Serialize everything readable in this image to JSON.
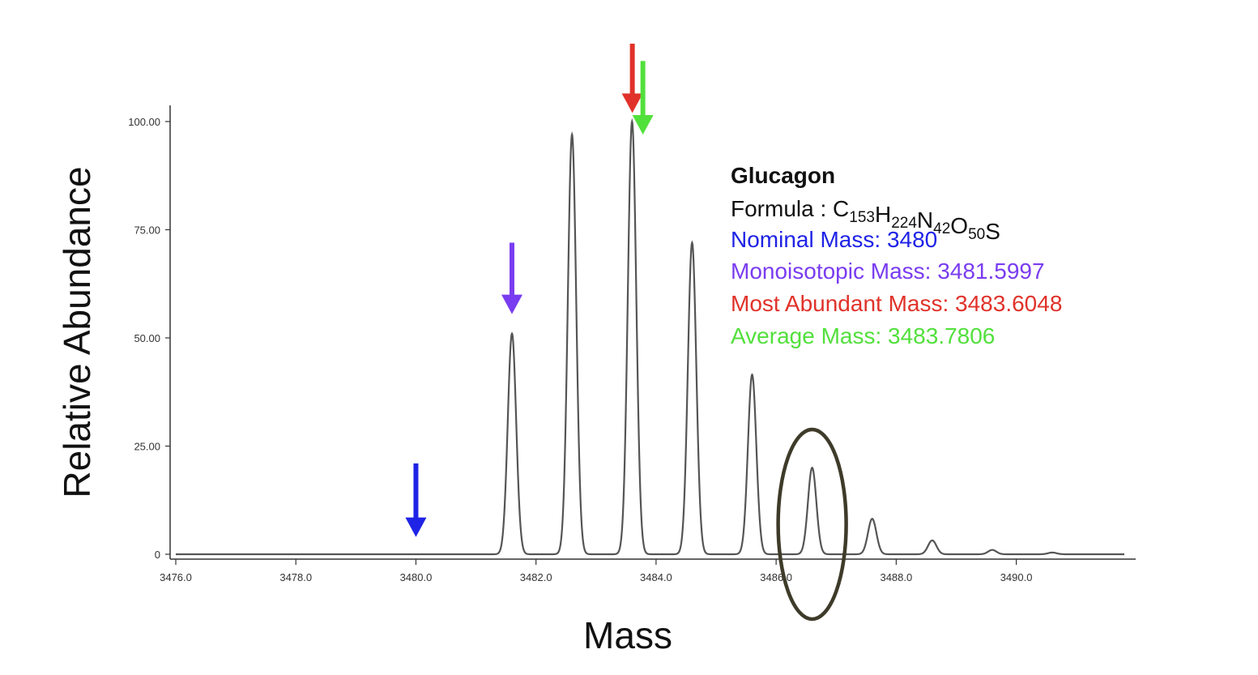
{
  "chart_data": {
    "type": "line",
    "xlabel": "Mass",
    "ylabel": "Relative Abundance",
    "xlim": [
      3476.0,
      3491.8
    ],
    "ylim": [
      0,
      100
    ],
    "x_ticks": [
      3476.0,
      3478.0,
      3480.0,
      3482.0,
      3484.0,
      3486.0,
      3488.0,
      3490.0
    ],
    "x_tick_labels": [
      "3476.0",
      "3478.0",
      "3480.0",
      "3482.0",
      "3484.0",
      "3486.0",
      "3488.0",
      "3490.0"
    ],
    "y_ticks": [
      0,
      25,
      50,
      75,
      100
    ],
    "y_tick_labels": [
      "0",
      "25.00",
      "50.00",
      "75.00",
      "100.00"
    ],
    "grid": false,
    "series": [
      {
        "color": "#555555",
        "peak_width": 0.07,
        "peaks": [
          {
            "x": 3481.6,
            "y": 51
          },
          {
            "x": 3482.6,
            "y": 97
          },
          {
            "x": 3483.6,
            "y": 100
          },
          {
            "x": 3484.6,
            "y": 72
          },
          {
            "x": 3485.6,
            "y": 41.5
          },
          {
            "x": 3486.6,
            "y": 20
          },
          {
            "x": 3487.6,
            "y": 8.2
          },
          {
            "x": 3488.6,
            "y": 3.2
          },
          {
            "x": 3489.6,
            "y": 1.0
          },
          {
            "x": 3490.6,
            "y": 0.4
          }
        ]
      }
    ],
    "annotations": {
      "title": "Glucagon",
      "formula": {
        "prefix": "Formula : ",
        "parts": [
          {
            "el": "C",
            "n": "153"
          },
          {
            "el": "H",
            "n": "224"
          },
          {
            "el": "N",
            "n": "42"
          },
          {
            "el": "O",
            "n": "50"
          },
          {
            "el": "S",
            "n": ""
          }
        ]
      },
      "masses": [
        {
          "label": "Nominal Mass:  3480",
          "color": "#1f23e6",
          "x": 3480.0,
          "arrow_top": 21,
          "arrow_bottom": 4
        },
        {
          "label": "Monoisotopic Mass: 3481.5997",
          "color": "#7a3cf0",
          "x": 3481.5997,
          "arrow_top": 72,
          "arrow_bottom": 55.5
        },
        {
          "label": "Most Abundant Mass:  3483.6048",
          "color": "#e0322a",
          "x": 3483.6048,
          "arrow_top": 118,
          "arrow_bottom": 102
        },
        {
          "label": "Average Mass: 3483.7806",
          "color": "#52e03c",
          "x": 3483.7806,
          "arrow_top": 114,
          "arrow_bottom": 97
        }
      ],
      "highlight": {
        "x": 3486.6,
        "y": 20,
        "color": "#3e3b2a"
      }
    }
  }
}
